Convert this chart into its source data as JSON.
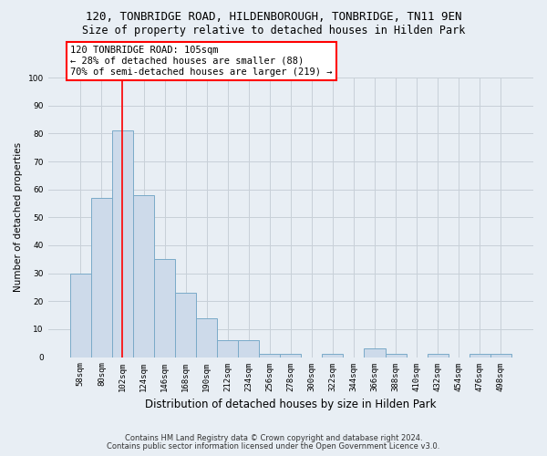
{
  "title1": "120, TONBRIDGE ROAD, HILDENBOROUGH, TONBRIDGE, TN11 9EN",
  "title2": "Size of property relative to detached houses in Hilden Park",
  "xlabel": "Distribution of detached houses by size in Hilden Park",
  "ylabel": "Number of detached properties",
  "categories": [
    "58sqm",
    "80sqm",
    "102sqm",
    "124sqm",
    "146sqm",
    "168sqm",
    "190sqm",
    "212sqm",
    "234sqm",
    "256sqm",
    "278sqm",
    "300sqm",
    "322sqm",
    "344sqm",
    "366sqm",
    "388sqm",
    "410sqm",
    "432sqm",
    "454sqm",
    "476sqm",
    "498sqm"
  ],
  "values": [
    30,
    57,
    81,
    58,
    35,
    23,
    14,
    6,
    6,
    1,
    1,
    0,
    1,
    0,
    3,
    1,
    0,
    1,
    0,
    1,
    1
  ],
  "bar_color": "#cddaea",
  "bar_edge_color": "#7aaac8",
  "red_line_index": 2,
  "annotation_line1": "120 TONBRIDGE ROAD: 105sqm",
  "annotation_line2": "← 28% of detached houses are smaller (88)",
  "annotation_line3": "70% of semi-detached houses are larger (219) →",
  "annotation_box_color": "white",
  "annotation_box_edge": "red",
  "ylim": [
    0,
    100
  ],
  "yticks": [
    0,
    10,
    20,
    30,
    40,
    50,
    60,
    70,
    80,
    90,
    100
  ],
  "grid_color": "#c8d0d8",
  "background_color": "#e8eef4",
  "footer1": "Contains HM Land Registry data © Crown copyright and database right 2024.",
  "footer2": "Contains public sector information licensed under the Open Government Licence v3.0.",
  "title_fontsize": 9,
  "subtitle_fontsize": 8.5,
  "xlabel_fontsize": 8.5,
  "ylabel_fontsize": 7.5,
  "tick_fontsize": 6.5,
  "annotation_fontsize": 7.5,
  "footer_fontsize": 6
}
